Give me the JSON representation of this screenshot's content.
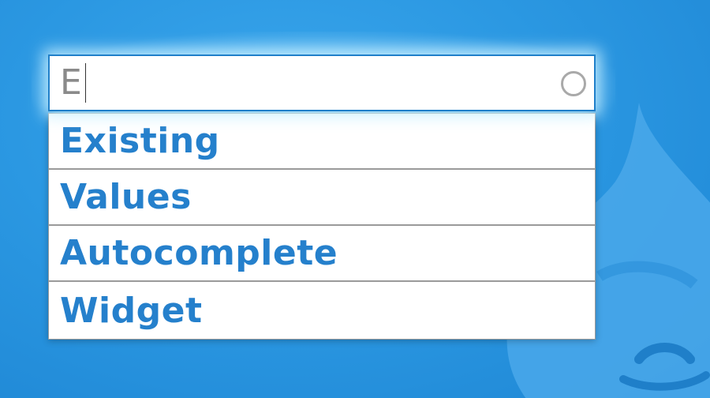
{
  "search": {
    "value": "E"
  },
  "suggestions": [
    {
      "label": "Existing"
    },
    {
      "label": "Values"
    },
    {
      "label": "Autocomplete"
    },
    {
      "label": "Widget"
    }
  ],
  "colors": {
    "background": "#2b98e2",
    "suggestion_text": "#2580cc",
    "input_border": "#1f7fc9",
    "input_text": "#8a8a8a",
    "throbber": "#a9a9a9"
  },
  "icons": {
    "throbber": "throbber-icon",
    "logo": "drupal-drop-logo"
  }
}
